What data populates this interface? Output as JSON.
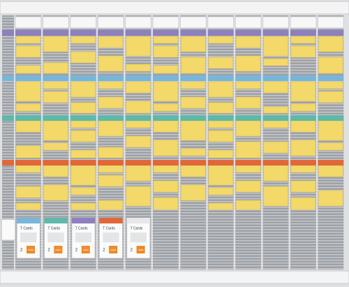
{
  "packs": [
    {
      "label": "T Cards",
      "count": "2",
      "brand": "nobo"
    },
    {
      "label": "T Cards",
      "count": "2",
      "brand": "nobo"
    },
    {
      "label": "T Cards",
      "count": "2",
      "brand": "nobo"
    },
    {
      "label": "T Cards",
      "count": "2",
      "brand": "nobo"
    },
    {
      "label": "T Cards",
      "count": "2",
      "brand": "nobo"
    }
  ]
}
